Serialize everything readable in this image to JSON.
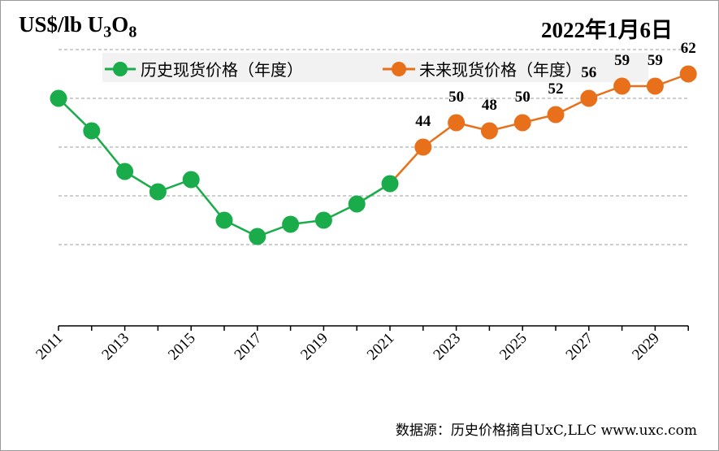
{
  "header": {
    "unit_label": "US$/lb U",
    "unit_sub1": "3",
    "unit_mid": "O",
    "unit_sub2": "8",
    "date": "2022年1月6日"
  },
  "footer": {
    "source": "数据源：历史价格摘自UxC,LLC  www.uxc.com"
  },
  "colors": {
    "historical": "#1aac4b",
    "forecast": "#e8701a",
    "grid": "#b0b0b0",
    "axis": "#000000"
  },
  "chart_data": {
    "type": "line",
    "title": "",
    "xlabel": "",
    "ylabel": "US$/lb U3O8",
    "ylim": [
      0,
      80
    ],
    "y_ticks_shown": false,
    "grid": "horizontal-dashed",
    "legend_position": "top",
    "x_tick_labels": [
      "2011",
      "2013",
      "2015",
      "2017",
      "2019",
      "2021",
      "2023",
      "2025",
      "2027",
      "2029"
    ],
    "series": [
      {
        "name": "历史现货价格（年度）",
        "color": "#1aac4b",
        "x": [
          2011,
          2012,
          2013,
          2014,
          2015,
          2016,
          2017,
          2018,
          2019,
          2020,
          2021
        ],
        "values": [
          56,
          48,
          38,
          33,
          36,
          26,
          22,
          25,
          26,
          30,
          35
        ],
        "data_labels": false
      },
      {
        "name": "未来现货价格（年度）",
        "color": "#e8701a",
        "x": [
          2021,
          2022,
          2023,
          2024,
          2025,
          2026,
          2027,
          2028,
          2029,
          2030
        ],
        "values": [
          35,
          44,
          50,
          48,
          50,
          52,
          56,
          59,
          59,
          62
        ],
        "data_labels": true,
        "label_x": [
          2022,
          2023,
          2024,
          2025,
          2026,
          2027,
          2028,
          2029,
          2030
        ],
        "labels": [
          "44",
          "50",
          "48",
          "50",
          "52",
          "56",
          "59",
          "59",
          "62"
        ]
      }
    ]
  }
}
